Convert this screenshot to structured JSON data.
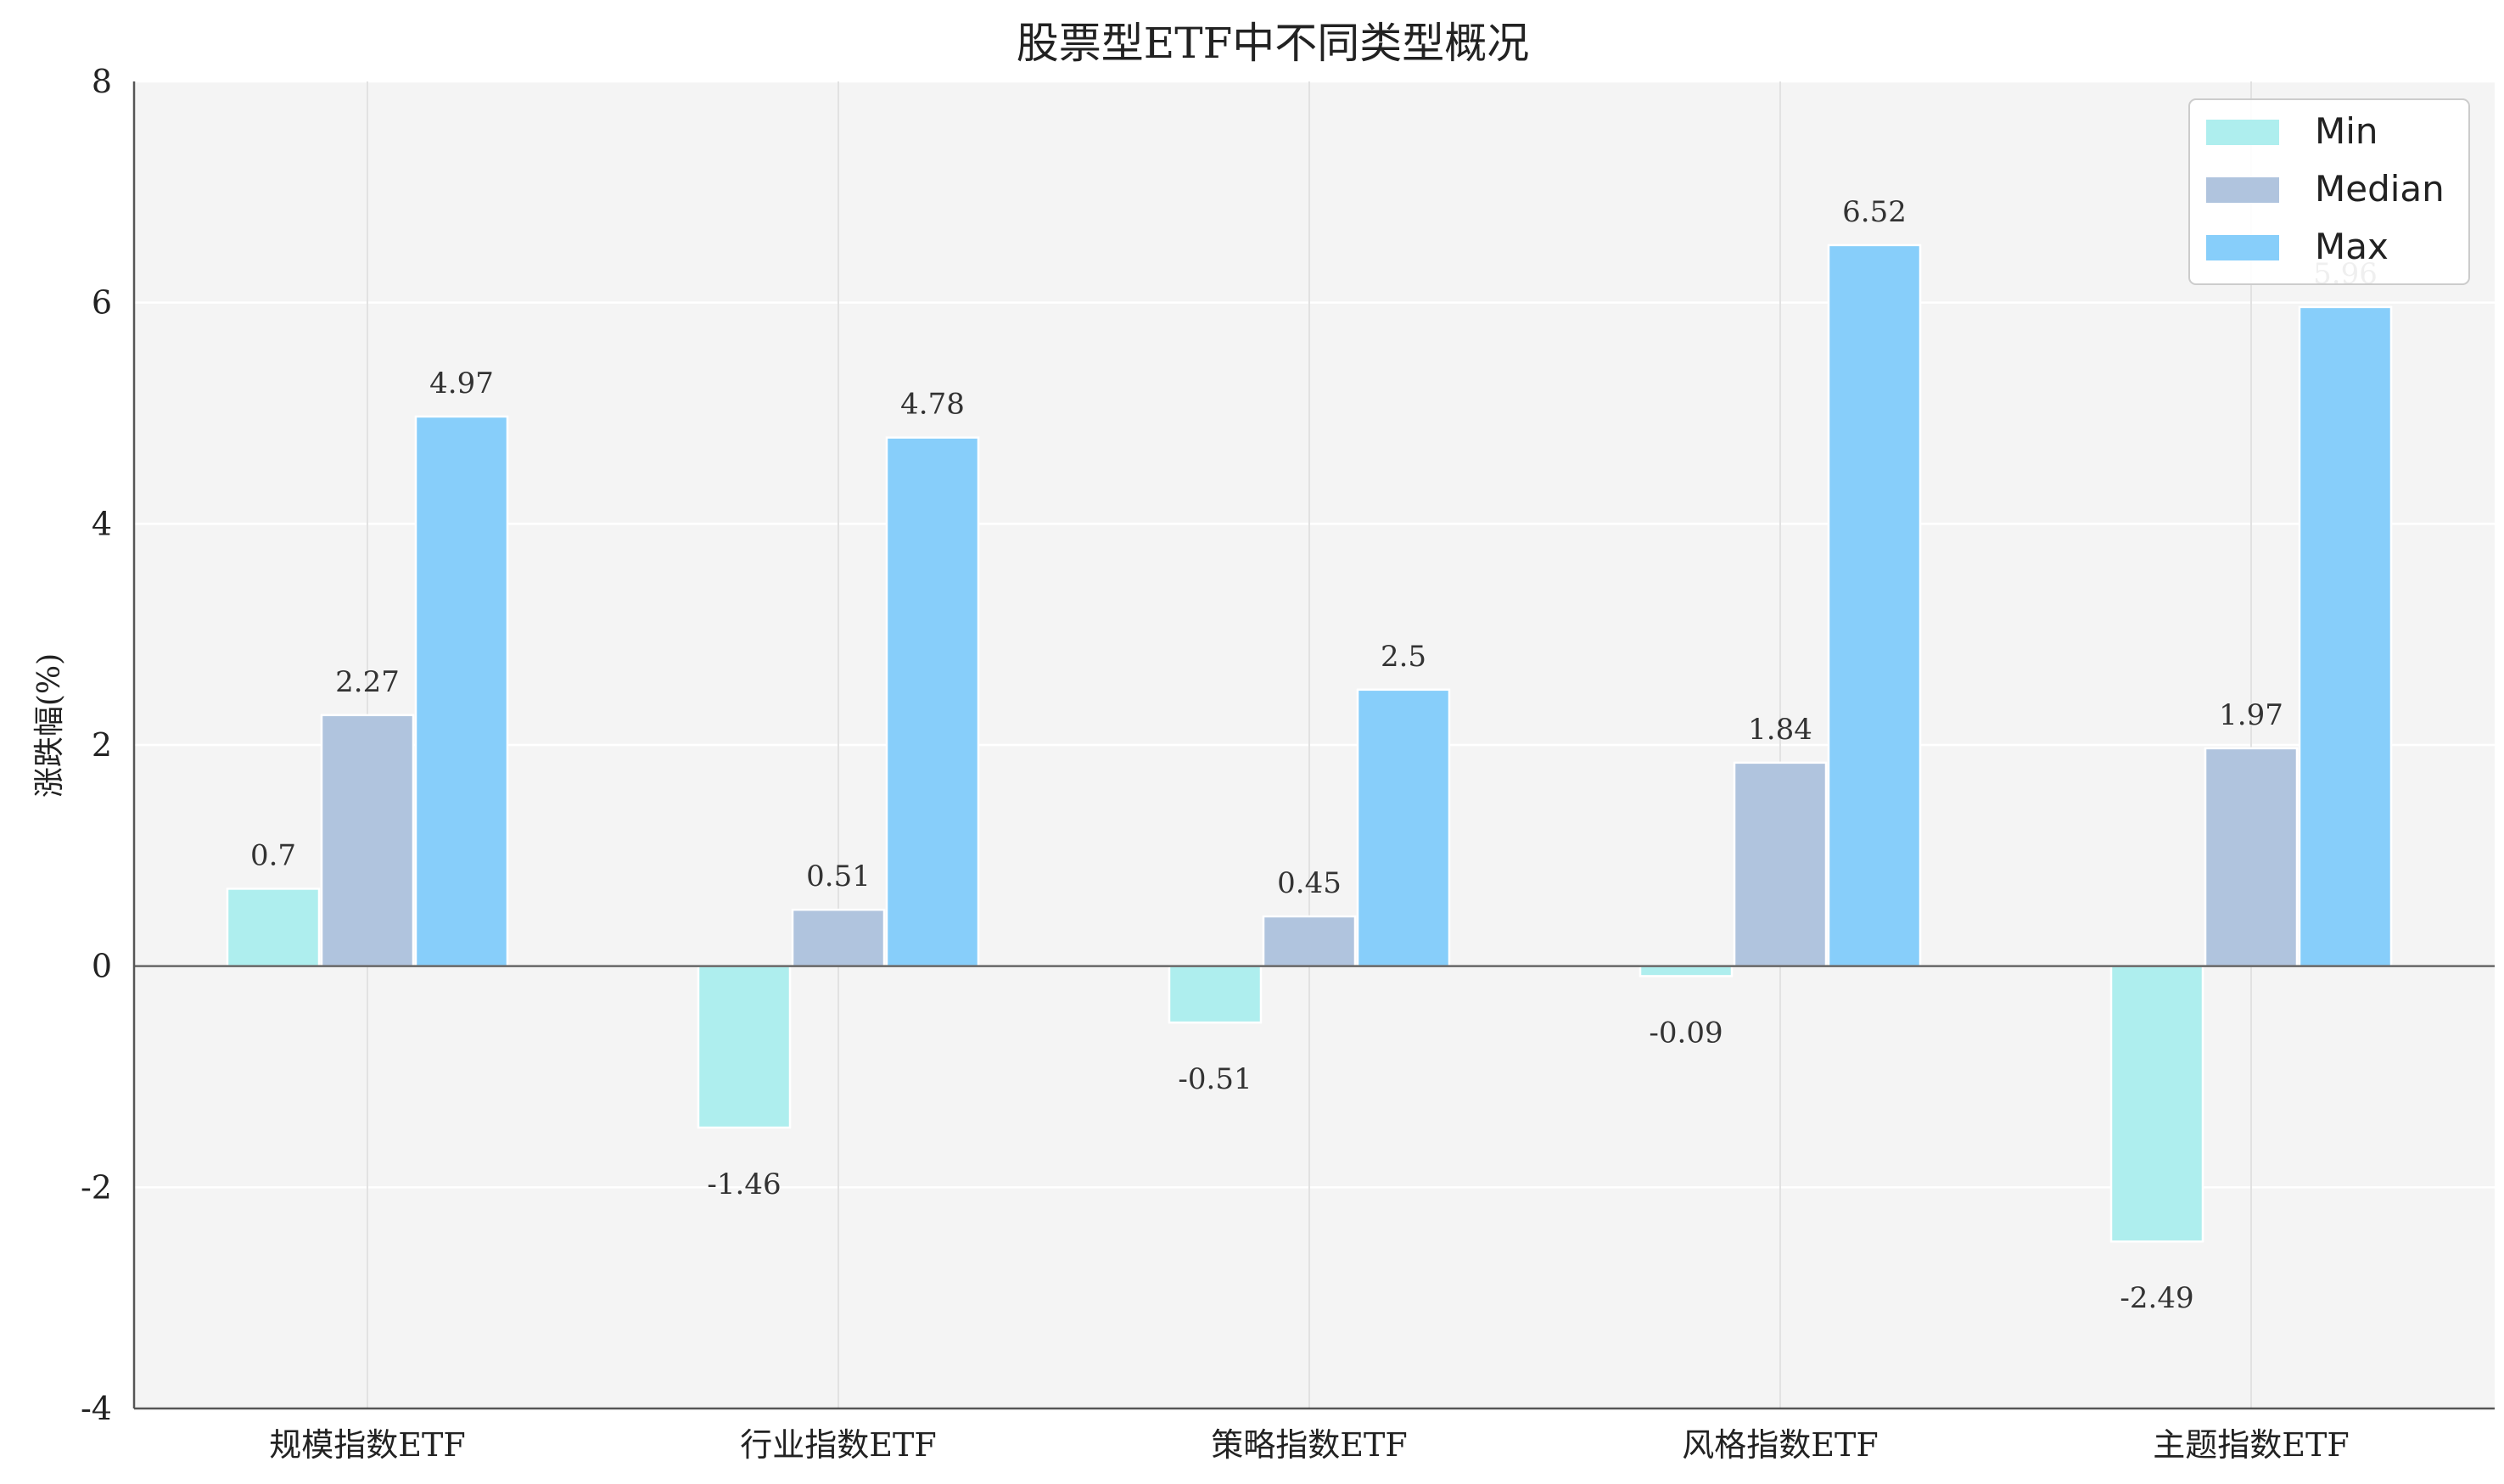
{
  "chart_data": {
    "type": "bar",
    "title": "股票型ETF中不同类型概况",
    "xlabel": "",
    "ylabel": "涨跌幅(%)",
    "ylim": [
      -4,
      8
    ],
    "yticks": [
      -4,
      -2,
      0,
      2,
      4,
      6,
      8
    ],
    "grid": true,
    "legend_position": "top-right",
    "categories": [
      "规模指数ETF",
      "行业指数ETF",
      "策略指数ETF",
      "风格指数ETF",
      "主题指数ETF"
    ],
    "series": [
      {
        "name": "Min",
        "color": "#AEEEEE",
        "values": [
          0.7,
          -1.46,
          -0.51,
          -0.09,
          -2.49
        ]
      },
      {
        "name": "Median",
        "color": "#B0C4DE",
        "values": [
          2.27,
          0.51,
          0.45,
          1.84,
          1.97
        ]
      },
      {
        "name": "Max",
        "color": "#87CEFA",
        "values": [
          4.97,
          4.78,
          2.5,
          6.52,
          5.96
        ]
      }
    ]
  }
}
